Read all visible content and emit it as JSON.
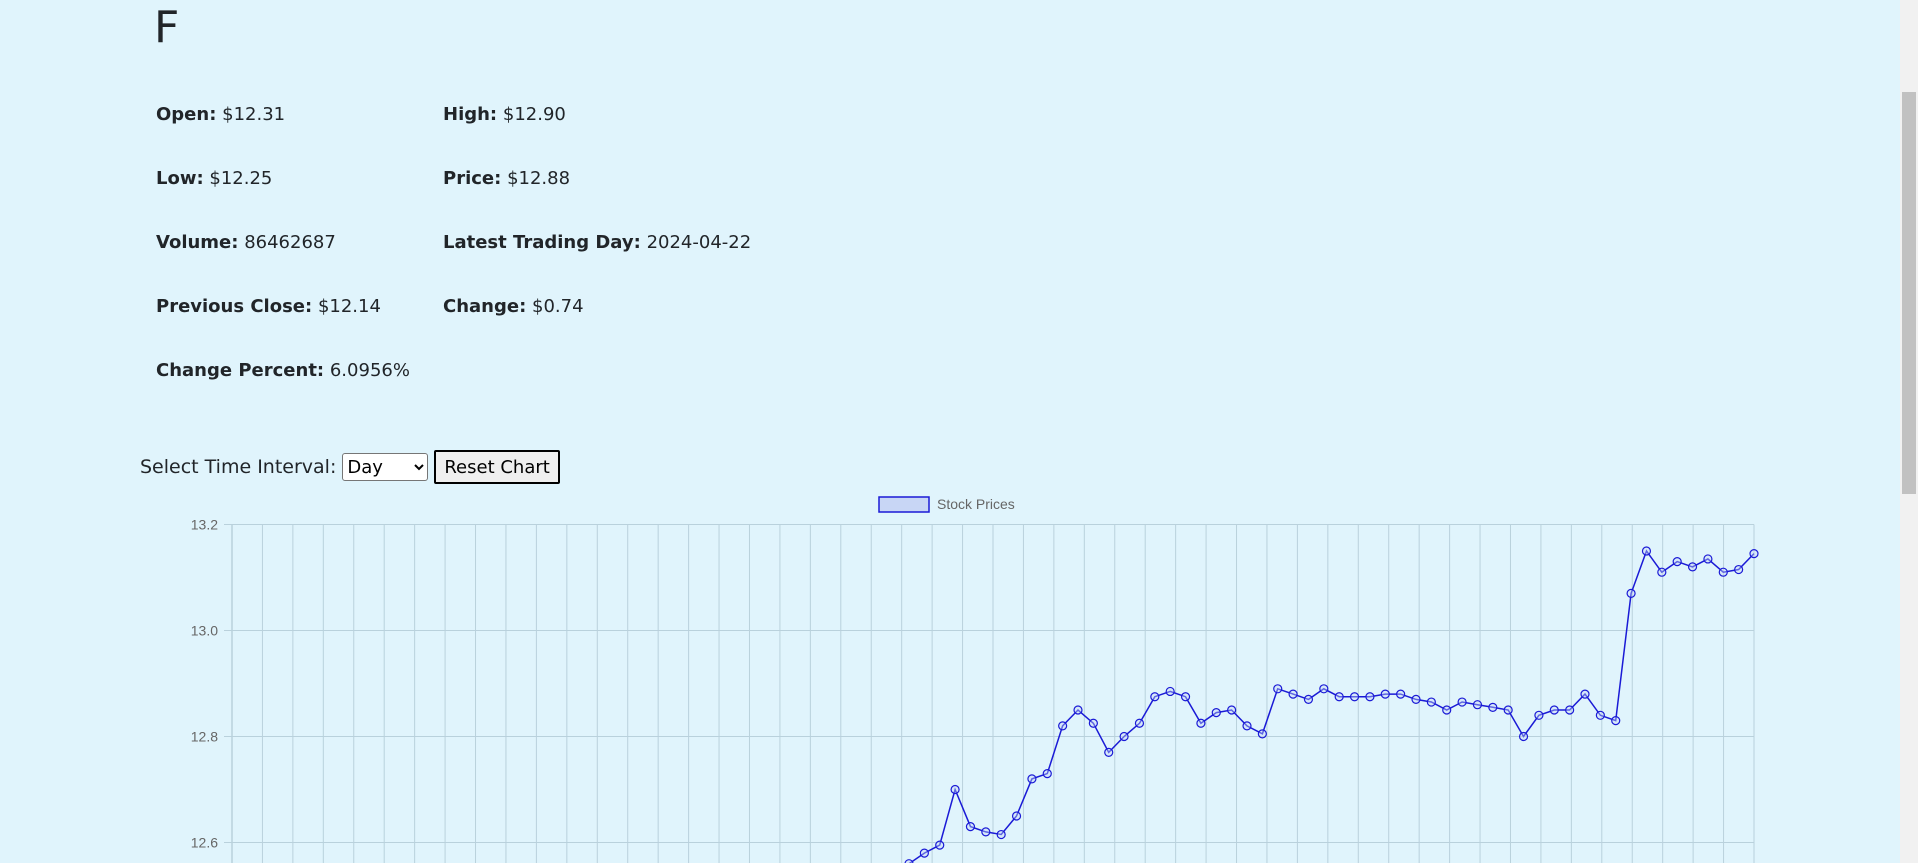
{
  "ticker": "F",
  "stats": {
    "open_label": "Open:",
    "open_value": "$12.31",
    "high_label": "High:",
    "high_value": "$12.90",
    "low_label": "Low:",
    "low_value": "$12.25",
    "price_label": "Price:",
    "price_value": "$12.88",
    "volume_label": "Volume:",
    "volume_value": "86462687",
    "latest_day_label": "Latest Trading Day:",
    "latest_day_value": "2024-04-22",
    "prev_close_label": "Previous Close:",
    "prev_close_value": "$12.14",
    "change_label": "Change:",
    "change_value": "$0.74",
    "change_pct_label": "Change Percent:",
    "change_pct_value": "6.0956%"
  },
  "controls": {
    "interval_label": "Select Time Interval:",
    "interval_options": [
      "Day"
    ],
    "interval_selected": "Day",
    "reset_label": "Reset Chart"
  },
  "colors": {
    "background": "#e0f4fc",
    "line": "#1a1ad6",
    "legend_fill": "#c8d6f5",
    "grid": "#b9d1dc"
  },
  "chart_data": {
    "type": "line",
    "legend": [
      "Stock Prices"
    ],
    "legend_position": "top-center",
    "grid": true,
    "ylim": [
      12.5,
      13.2
    ],
    "yticks": [
      12.6,
      12.8,
      13.0,
      13.2
    ],
    "series": [
      {
        "name": "Stock Prices",
        "values": [
          12.56,
          12.58,
          12.595,
          12.7,
          12.63,
          12.62,
          12.615,
          12.65,
          12.72,
          12.73,
          12.82,
          12.85,
          12.825,
          12.77,
          12.8,
          12.825,
          12.875,
          12.885,
          12.875,
          12.825,
          12.845,
          12.85,
          12.82,
          12.805,
          12.89,
          12.88,
          12.87,
          12.89,
          12.875,
          12.875,
          12.875,
          12.88,
          12.88,
          12.87,
          12.865,
          12.85,
          12.865,
          12.86,
          12.855,
          12.85,
          12.8,
          12.84,
          12.85,
          12.85,
          12.88,
          12.84,
          12.83,
          13.07,
          13.15,
          13.11,
          13.13,
          13.12,
          13.135,
          13.11,
          13.115,
          13.145
        ]
      }
    ]
  }
}
